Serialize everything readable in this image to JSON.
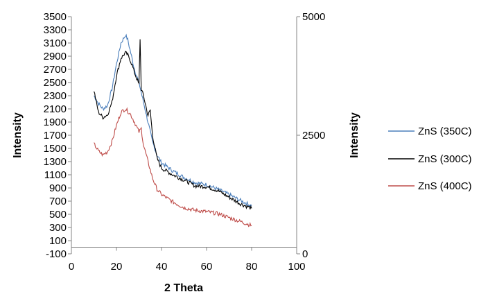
{
  "chart_data": {
    "type": "line",
    "title": "",
    "xlabel": "2 Theta",
    "ylabel": "Intensity",
    "y2label": "Intensity",
    "xlim": [
      0,
      100
    ],
    "ylim": [
      -100,
      3500
    ],
    "y2lim": [
      0,
      5000
    ],
    "x_ticks": [
      "0",
      "20",
      "40",
      "60",
      "80",
      "100"
    ],
    "y_ticks": [
      "-100",
      "100",
      "300",
      "500",
      "700",
      "900",
      "1100",
      "1300",
      "1500",
      "1700",
      "1900",
      "2100",
      "2300",
      "2500",
      "2700",
      "2900",
      "3100",
      "3300",
      "3500"
    ],
    "y2_ticks": [
      "0",
      "2500",
      "5000"
    ],
    "grid": false,
    "legend_position": "right",
    "series": [
      {
        "name": "ZnS (350C)",
        "color": "#4a7ebb",
        "x": [
          10,
          12,
          14,
          16,
          18,
          20,
          22,
          24,
          25,
          26,
          27,
          28,
          30,
          32,
          34,
          36,
          38,
          40,
          45,
          50,
          55,
          60,
          65,
          70,
          75,
          80
        ],
        "y": [
          2300,
          2180,
          2100,
          2150,
          2400,
          2780,
          3100,
          3220,
          3150,
          3000,
          2850,
          2700,
          2500,
          2200,
          1900,
          1600,
          1400,
          1280,
          1160,
          1060,
          980,
          950,
          880,
          800,
          710,
          630
        ]
      },
      {
        "name": "ZnS (300C)",
        "color": "#000000",
        "x": [
          10,
          12,
          14,
          16,
          18,
          20,
          22,
          24,
          25,
          26,
          27,
          28,
          29,
          30,
          30.5,
          31,
          32,
          34,
          35,
          36,
          38,
          40,
          45,
          50,
          55,
          60,
          65,
          70,
          75,
          80
        ],
        "y": [
          2380,
          2050,
          1970,
          2010,
          2200,
          2600,
          2870,
          2950,
          2920,
          2850,
          2760,
          2650,
          2560,
          2470,
          3170,
          2400,
          2300,
          2000,
          2080,
          1700,
          1350,
          1200,
          1100,
          1020,
          930,
          920,
          860,
          760,
          660,
          590
        ]
      },
      {
        "name": "ZnS (400C)",
        "color": "#be4b48",
        "x": [
          10,
          12,
          14,
          16,
          18,
          20,
          22,
          24,
          26,
          28,
          30,
          31,
          32,
          34,
          36,
          38,
          40,
          45,
          50,
          55,
          60,
          65,
          70,
          75,
          80
        ],
        "y": [
          1570,
          1460,
          1400,
          1450,
          1600,
          1850,
          2050,
          2100,
          2030,
          1900,
          1750,
          1800,
          1550,
          1300,
          1050,
          880,
          800,
          690,
          600,
          560,
          540,
          510,
          450,
          390,
          330
        ]
      }
    ]
  }
}
